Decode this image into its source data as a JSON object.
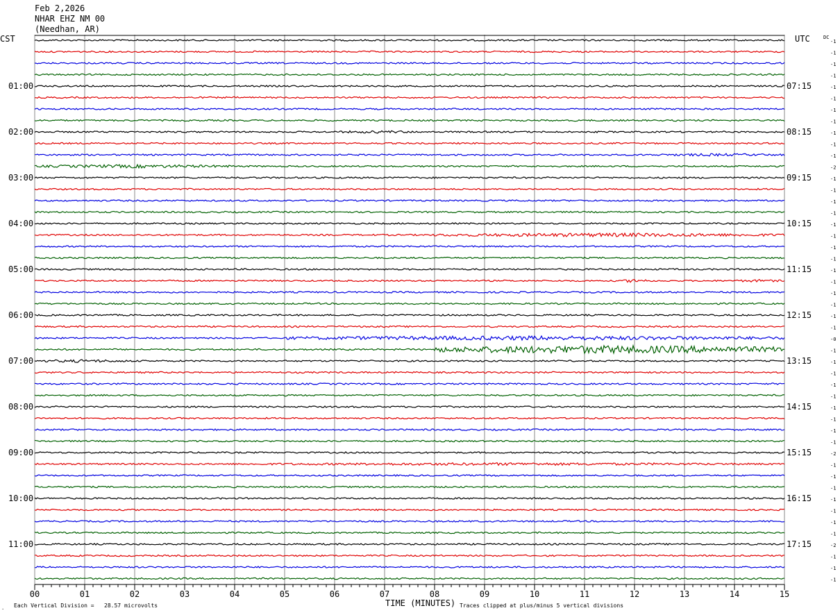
{
  "header": {
    "date": "Feb 2,2026",
    "station": "NHAR EHZ NM 00",
    "location": "(Needhan, AR)"
  },
  "left_tz": "CST",
  "right_tz": "UTC",
  "dc_label": "DC",
  "footer": {
    "axis_title": "TIME (MINUTES)",
    "scale_note": "Each Vertical Division =   28.57 microvolts",
    "clip_note": "Traces clipped at plus/minus 5 vertical divisions"
  },
  "chart_data": {
    "type": "line",
    "title": "NHAR EHZ NM 00",
    "xlabel": "TIME (MINUTES)",
    "xlim": [
      0,
      15
    ],
    "x_ticks": [
      "00",
      "01",
      "02",
      "03",
      "04",
      "05",
      "06",
      "07",
      "08",
      "09",
      "10",
      "11",
      "12",
      "13",
      "14",
      "15"
    ],
    "grid": true,
    "trace_colors": [
      "#000000",
      "#e00000",
      "#0000e0",
      "#006000"
    ],
    "minutes_per_line": 15,
    "lines_count": 48,
    "left_hour_labels": [
      "01:00",
      "02:00",
      "03:00",
      "04:00",
      "05:00",
      "06:00",
      "07:00",
      "08:00",
      "09:00",
      "10:00",
      "11:00"
    ],
    "right_hour_labels": [
      "07:15",
      "08:15",
      "09:15",
      "10:15",
      "11:15",
      "12:15",
      "13:15",
      "14:15",
      "15:15",
      "16:15",
      "17:15"
    ],
    "hour_label_first_line": 4,
    "dc_offsets": [
      "-1",
      "-1",
      "-1",
      "-1",
      "-1",
      "-1",
      "-1",
      "-1",
      "-1",
      "-1",
      "-1",
      "-2",
      "-1",
      "-1",
      "-1",
      "-1",
      "-1",
      "-1",
      "-1",
      "-1",
      "-1",
      "-1",
      "-1",
      "-1",
      "-1",
      "-1",
      "-0",
      "-1",
      "-1",
      "-1",
      "-1",
      "-1",
      "-1",
      "-1",
      "-1",
      "-1",
      "-2",
      "-1",
      "-1",
      "-1",
      "-1",
      "-1",
      "-1",
      "-1",
      "-2",
      "-1",
      "-1",
      "-1"
    ],
    "events": [
      {
        "line": 8,
        "start_min": 6.0,
        "end_min": 7.8,
        "amp": 2.0
      },
      {
        "line": 10,
        "start_min": 12.3,
        "end_min": 15.0,
        "amp": 2.0
      },
      {
        "line": 11,
        "start_min": 0.0,
        "end_min": 4.0,
        "amp": 2.5
      },
      {
        "line": 17,
        "start_min": 8.0,
        "end_min": 15.0,
        "amp": 2.8
      },
      {
        "line": 21,
        "start_min": 11.8,
        "end_min": 12.3,
        "amp": 3.0
      },
      {
        "line": 21,
        "start_min": 13.9,
        "end_min": 15.0,
        "amp": 2.0
      },
      {
        "line": 26,
        "start_min": 5.0,
        "end_min": 15.0,
        "amp": 3.2
      },
      {
        "line": 27,
        "start_min": 8.0,
        "end_min": 15.0,
        "amp": 6.0
      },
      {
        "line": 28,
        "start_min": 0.0,
        "end_min": 2.0,
        "amp": 2.2
      },
      {
        "line": 37,
        "start_min": 4.0,
        "end_min": 15.0,
        "amp": 2.0
      }
    ]
  }
}
